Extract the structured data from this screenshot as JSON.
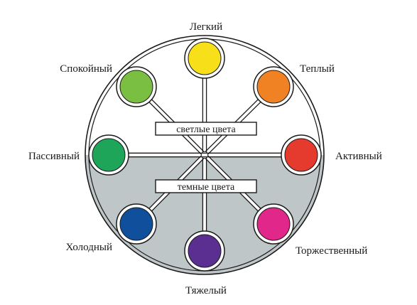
{
  "title": "",
  "bands": {
    "light": "светлые цвета",
    "dark": "темные цвета"
  },
  "colors": {
    "outline": "#1a1a1a",
    "dark_fill": "#bfc6c8",
    "background": "#ffffff"
  },
  "nodes": [
    {
      "id": "light",
      "label": "Легкий",
      "color": "#f7e01a"
    },
    {
      "id": "warm",
      "label": "Теплый",
      "color": "#f08224"
    },
    {
      "id": "active",
      "label": "Активный",
      "color": "#e53a2e"
    },
    {
      "id": "solemn",
      "label": "Торжественный",
      "color": "#e2278a"
    },
    {
      "id": "heavy",
      "label": "Тяжелый",
      "color": "#5b2e91"
    },
    {
      "id": "cold",
      "label": "Холодный",
      "color": "#0f4f9c"
    },
    {
      "id": "passive",
      "label": "Пассивный",
      "color": "#1fa55a"
    },
    {
      "id": "calm",
      "label": "Спокойный",
      "color": "#7bbf42"
    }
  ]
}
